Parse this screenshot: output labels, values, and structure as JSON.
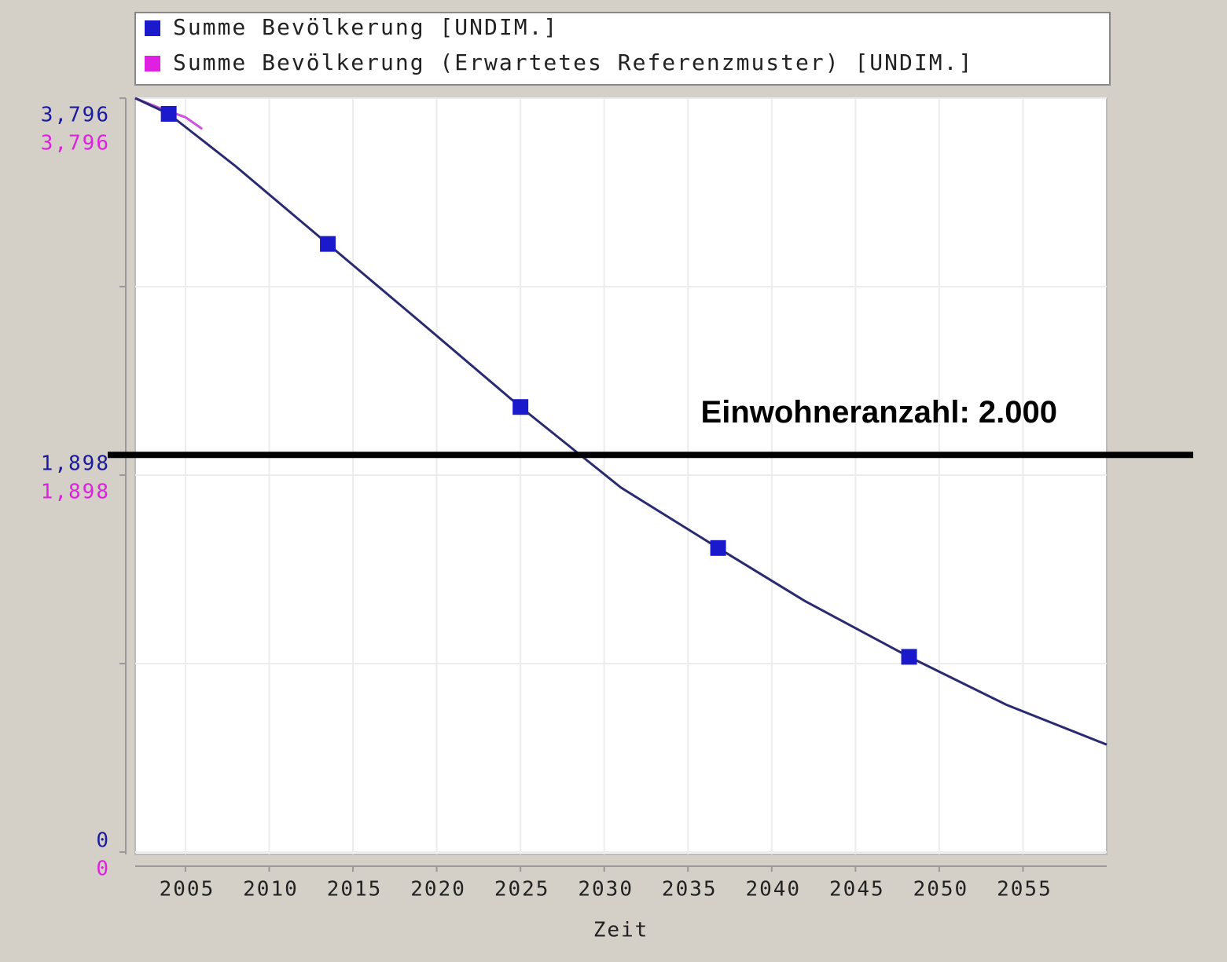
{
  "chart_data": {
    "type": "line",
    "series": [
      {
        "name": "Summe Bevölkerung [UNDIM.]",
        "color": "#1a1acc",
        "line_color": "#2a2a70",
        "x": [
          2002,
          2004,
          2008,
          2013.5,
          2019,
          2025,
          2031,
          2036.8,
          2042,
          2048.2,
          2054,
          2060
        ],
        "values": [
          3796,
          3717,
          3453,
          3062,
          2671,
          2241,
          1835,
          1531,
          1263,
          983,
          742,
          541
        ]
      },
      {
        "name": "Summe Bevölkerung (Erwartetes Referenzmuster) [UNDIM.]",
        "color": "#e020e0",
        "line_color": "#d050e0",
        "axis": "y2",
        "x": [
          2002,
          2003.5,
          2005,
          2006
        ],
        "values": [
          3796,
          3745,
          3700,
          3641
        ]
      }
    ],
    "xlim": [
      2002,
      2060
    ],
    "xticks": [
      2005,
      2010,
      2015,
      2020,
      2025,
      2030,
      2035,
      2040,
      2045,
      2050,
      2055
    ],
    "xlabel": "Zeit",
    "ylim": [
      0,
      3796
    ],
    "yticks": [
      0,
      {
        "value": 1898,
        "label": "1,898"
      },
      {
        "value": 3796,
        "label": "3,796"
      }
    ],
    "minor_yticks": [
      949,
      2847
    ],
    "y2lim": [
      0,
      3796
    ],
    "y2ticks": [
      0,
      {
        "value": 1898,
        "label": "1,898"
      },
      {
        "value": 3796,
        "label": "3,796"
      }
    ],
    "grid": true,
    "reference_line": {
      "value": 2000,
      "label": "Einwohneranzahl: 2.000"
    }
  }
}
